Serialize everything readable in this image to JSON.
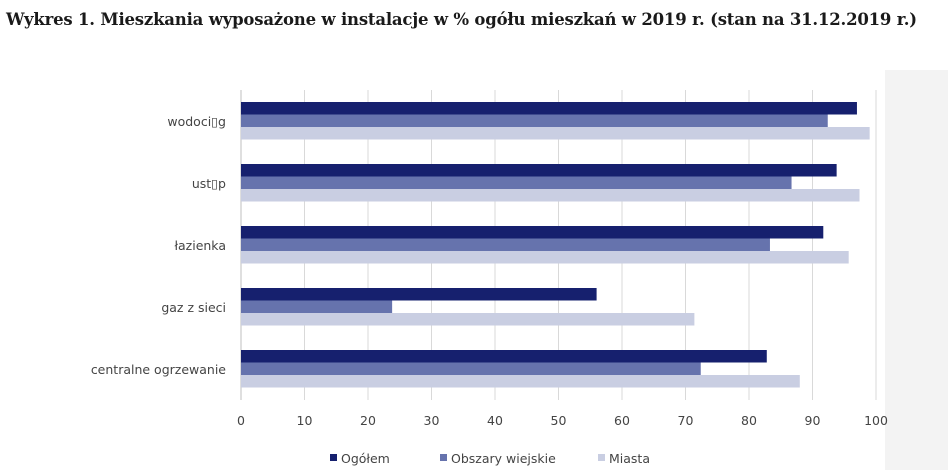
{
  "title": "Wykres 1. Mieszkania wyposażone w instalacje w % ogółu mieszkań w 2019 r. (stan na 31.12.2019 r.)",
  "chart_data": {
    "type": "bar",
    "orientation": "horizontal",
    "categories": [
      "wodoci▯g",
      "ust▯p",
      "łazienka",
      "gaz z sieci",
      "centralne ogrzewanie"
    ],
    "series": [
      {
        "name": "Ogółem",
        "color": "#16206e",
        "values": [
          97.0,
          93.8,
          91.7,
          56.0,
          82.8
        ]
      },
      {
        "name": "Obszary wiejskie",
        "color": "#6673ad",
        "values": [
          92.4,
          86.7,
          83.3,
          23.8,
          72.4
        ]
      },
      {
        "name": "Miasta",
        "color": "#c9cee2",
        "values": [
          99.0,
          97.4,
          95.7,
          71.4,
          88.0
        ]
      }
    ],
    "xlim": [
      0,
      100
    ],
    "xticks": [
      0,
      10,
      20,
      30,
      40,
      50,
      60,
      70,
      80,
      90,
      100
    ],
    "grid": true,
    "legend_position": "bottom"
  }
}
